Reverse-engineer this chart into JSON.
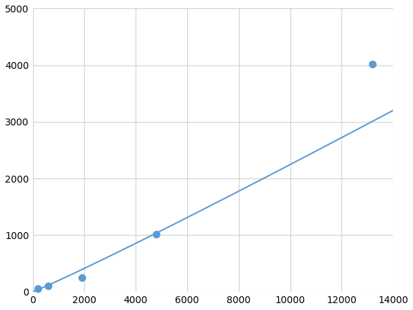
{
  "x_points": [
    200,
    600,
    1900,
    4800,
    13200
  ],
  "y_points": [
    50,
    100,
    250,
    1020,
    4020
  ],
  "line_color": "#5b9bd5",
  "marker_color": "#5b9bd5",
  "marker_facecolor": "#ffffff",
  "marker_edgewidth": 1.5,
  "marker_size": 7,
  "linewidth": 1.5,
  "xlim": [
    0,
    14000
  ],
  "ylim": [
    0,
    5000
  ],
  "xticks": [
    0,
    2000,
    4000,
    6000,
    8000,
    10000,
    12000,
    14000
  ],
  "yticks": [
    0,
    1000,
    2000,
    3000,
    4000,
    5000
  ],
  "xtick_labels": [
    "0",
    "2000",
    "4000",
    "6000",
    "8000",
    "10000",
    "12000",
    "14000"
  ],
  "ytick_labels": [
    "0",
    "1000",
    "2000",
    "3000",
    "4000",
    "5000"
  ],
  "grid_color": "#d0d0d0",
  "grid_linewidth": 0.8,
  "background_color": "#ffffff",
  "tick_fontsize": 10,
  "figsize": [
    6.0,
    4.5
  ],
  "dpi": 100
}
